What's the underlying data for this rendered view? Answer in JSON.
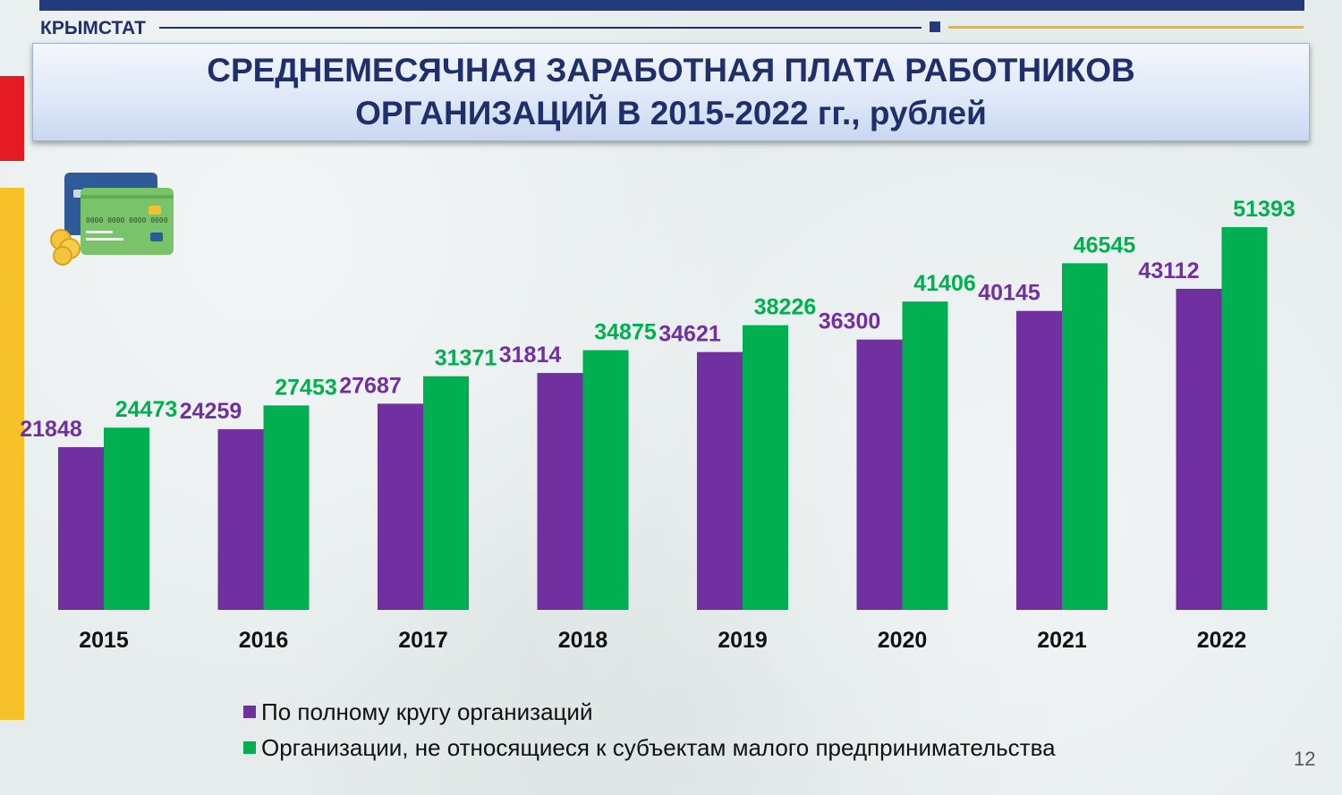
{
  "header": {
    "brand": "КРЫМСТАТ",
    "title_line1": "СРЕДНЕМЕСЯЧНАЯ ЗАРАБОТНАЯ ПЛАТА РАБОТНИКОВ",
    "title_line2": "ОРГАНИЗАЦИЙ В 2015-2022 гг., рублей"
  },
  "decor": {
    "cards_icon": "credit-cards-coins-icon",
    "accent_red": "#e41b23",
    "accent_yellow": "#f7c12a",
    "brand_navy": "#1f2f6b"
  },
  "chart_data": {
    "type": "bar",
    "title": "СРЕДНЕМЕСЯЧНАЯ ЗАРАБОТНАЯ ПЛАТА РАБОТНИКОВ ОРГАНИЗАЦИЙ В 2015-2022 гг., рублей",
    "categories": [
      "2015",
      "2016",
      "2017",
      "2018",
      "2019",
      "2020",
      "2021",
      "2022"
    ],
    "series": [
      {
        "name": "По полному кругу организаций",
        "color": "#7030a0",
        "values": [
          21848,
          24259,
          27687,
          31814,
          34621,
          36300,
          40145,
          43112
        ]
      },
      {
        "name": "Организации, не относящиеся к субъектам малого предпринимательства",
        "color": "#00b050",
        "values": [
          24473,
          27453,
          31371,
          34875,
          38226,
          41406,
          46545,
          51393
        ]
      }
    ],
    "ylim": [
      0,
      55000
    ],
    "grid": false,
    "legend": "bottom"
  },
  "footer": {
    "page_number": "12"
  }
}
